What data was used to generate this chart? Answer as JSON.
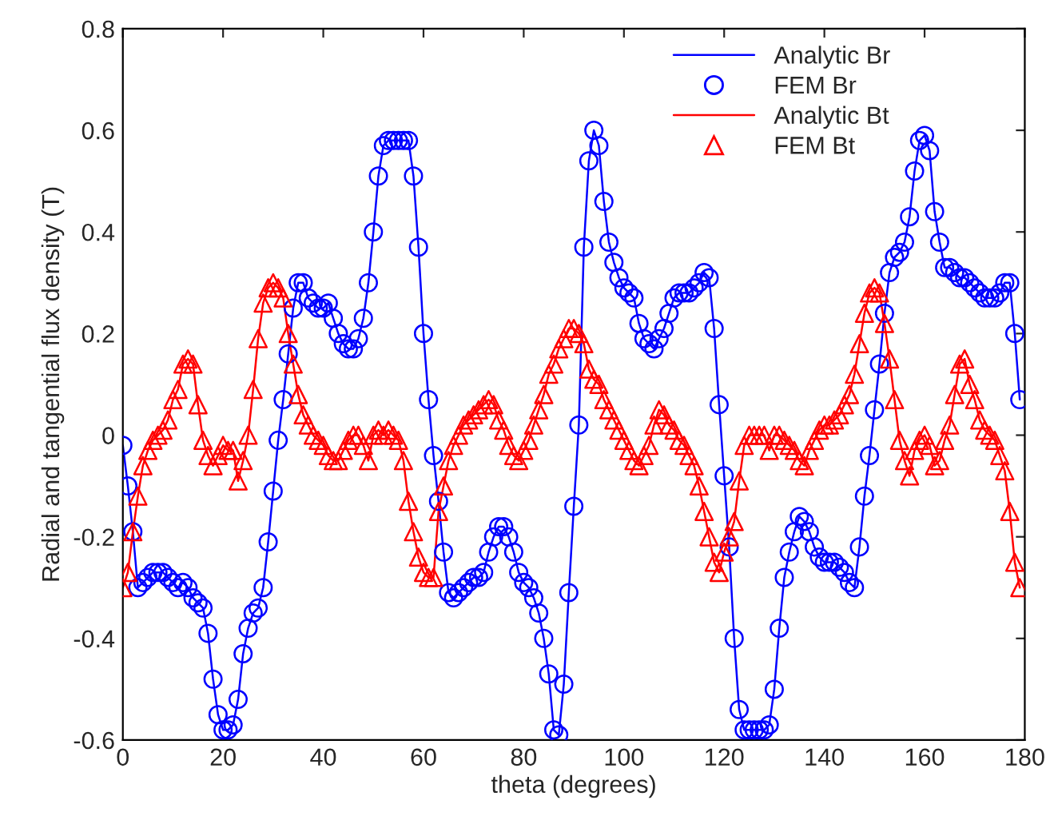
{
  "chart_data": {
    "type": "line",
    "xlabel": "theta (degrees)",
    "ylabel": "Radial and tangential flux density (T)",
    "x": [
      0,
      1,
      2,
      3,
      4,
      5,
      6,
      7,
      8,
      9,
      10,
      11,
      12,
      13,
      14,
      15,
      16,
      17,
      18,
      19,
      20,
      21,
      22,
      23,
      24,
      25,
      26,
      27,
      28,
      29,
      30,
      31,
      32,
      33,
      34,
      35,
      36,
      37,
      38,
      39,
      40,
      41,
      42,
      43,
      44,
      45,
      46,
      47,
      48,
      49,
      50,
      51,
      52,
      53,
      54,
      55,
      56,
      57,
      58,
      59,
      60,
      61,
      62,
      63,
      64,
      65,
      66,
      67,
      68,
      69,
      70,
      71,
      72,
      73,
      74,
      75,
      76,
      77,
      78,
      79,
      80,
      81,
      82,
      83,
      84,
      85,
      86,
      87,
      88,
      89,
      90,
      91,
      92,
      93,
      94,
      95,
      96,
      97,
      98,
      99,
      100,
      101,
      102,
      103,
      104,
      105,
      106,
      107,
      108,
      109,
      110,
      111,
      112,
      113,
      114,
      115,
      116,
      117,
      118,
      119,
      120,
      121,
      122,
      123,
      124,
      125,
      126,
      127,
      128,
      129,
      130,
      131,
      132,
      133,
      134,
      135,
      136,
      137,
      138,
      139,
      140,
      141,
      142,
      143,
      144,
      145,
      146,
      147,
      148,
      149,
      150,
      151,
      152,
      153,
      154,
      155,
      156,
      157,
      158,
      159,
      160,
      161,
      162,
      163,
      164,
      165,
      166,
      167,
      168,
      169,
      170,
      171,
      172,
      173,
      174,
      175,
      176,
      177,
      178,
      179
    ],
    "series": [
      {
        "name": "Analytic Br",
        "marker": "none",
        "color": "#0000ff",
        "values": [
          -0.02,
          -0.1,
          -0.19,
          -0.3,
          -0.29,
          -0.28,
          -0.27,
          -0.27,
          -0.27,
          -0.28,
          -0.29,
          -0.3,
          -0.29,
          -0.3,
          -0.32,
          -0.33,
          -0.34,
          -0.39,
          -0.48,
          -0.55,
          -0.58,
          -0.58,
          -0.57,
          -0.52,
          -0.43,
          -0.38,
          -0.35,
          -0.34,
          -0.3,
          -0.21,
          -0.11,
          -0.01,
          0.07,
          0.16,
          0.25,
          0.3,
          0.3,
          0.27,
          0.26,
          0.25,
          0.25,
          0.26,
          0.23,
          0.2,
          0.18,
          0.17,
          0.17,
          0.19,
          0.23,
          0.3,
          0.4,
          0.51,
          0.57,
          0.58,
          0.58,
          0.58,
          0.58,
          0.58,
          0.51,
          0.37,
          0.2,
          0.07,
          -0.04,
          -0.13,
          -0.23,
          -0.31,
          -0.32,
          -0.31,
          -0.3,
          -0.29,
          -0.28,
          -0.28,
          -0.27,
          -0.23,
          -0.2,
          -0.18,
          -0.18,
          -0.2,
          -0.23,
          -0.27,
          -0.29,
          -0.3,
          -0.32,
          -0.35,
          -0.4,
          -0.47,
          -0.58,
          -0.59,
          -0.49,
          -0.31,
          -0.14,
          0.02,
          0.37,
          0.54,
          0.6,
          0.57,
          0.46,
          0.38,
          0.34,
          0.31,
          0.29,
          0.28,
          0.27,
          0.22,
          0.19,
          0.18,
          0.17,
          0.19,
          0.21,
          0.24,
          0.27,
          0.28,
          0.28,
          0.28,
          0.29,
          0.3,
          0.32,
          0.31,
          0.21,
          0.06,
          -0.08,
          -0.22,
          -0.4,
          -0.54,
          -0.58,
          -0.58,
          -0.58,
          -0.58,
          -0.58,
          -0.57,
          -0.5,
          -0.38,
          -0.28,
          -0.23,
          -0.19,
          -0.16,
          -0.17,
          -0.19,
          -0.22,
          -0.24,
          -0.25,
          -0.25,
          -0.25,
          -0.26,
          -0.27,
          -0.29,
          -0.3,
          -0.22,
          -0.12,
          -0.04,
          0.05,
          0.14,
          0.24,
          0.32,
          0.35,
          0.36,
          0.38,
          0.43,
          0.52,
          0.58,
          0.59,
          0.56,
          0.44,
          0.38,
          0.33,
          0.33,
          0.32,
          0.31,
          0.31,
          0.3,
          0.29,
          0.28,
          0.27,
          0.27,
          0.27,
          0.28,
          0.3,
          0.3,
          0.2,
          0.07
        ]
      },
      {
        "name": "FEM Br",
        "type": "scatter",
        "marker": "circle",
        "color": "#0000ff",
        "values": [
          -0.02,
          -0.1,
          -0.19,
          -0.3,
          -0.29,
          -0.28,
          -0.27,
          -0.27,
          -0.27,
          -0.28,
          -0.29,
          -0.3,
          -0.29,
          -0.3,
          -0.32,
          -0.33,
          -0.34,
          -0.39,
          -0.48,
          -0.55,
          -0.58,
          -0.58,
          -0.57,
          -0.52,
          -0.43,
          -0.38,
          -0.35,
          -0.34,
          -0.3,
          -0.21,
          -0.11,
          -0.01,
          0.07,
          0.16,
          0.25,
          0.3,
          0.3,
          0.27,
          0.26,
          0.25,
          0.25,
          0.26,
          0.23,
          0.2,
          0.18,
          0.17,
          0.17,
          0.19,
          0.23,
          0.3,
          0.4,
          0.51,
          0.57,
          0.58,
          0.58,
          0.58,
          0.58,
          0.58,
          0.51,
          0.37,
          0.2,
          0.07,
          -0.04,
          -0.13,
          -0.23,
          -0.31,
          -0.32,
          -0.31,
          -0.3,
          -0.29,
          -0.28,
          -0.28,
          -0.27,
          -0.23,
          -0.2,
          -0.18,
          -0.18,
          -0.2,
          -0.23,
          -0.27,
          -0.29,
          -0.3,
          -0.32,
          -0.35,
          -0.4,
          -0.47,
          -0.58,
          -0.59,
          -0.49,
          -0.31,
          -0.14,
          0.02,
          0.37,
          0.54,
          0.6,
          0.57,
          0.46,
          0.38,
          0.34,
          0.31,
          0.29,
          0.28,
          0.27,
          0.22,
          0.19,
          0.18,
          0.17,
          0.19,
          0.21,
          0.24,
          0.27,
          0.28,
          0.28,
          0.28,
          0.29,
          0.3,
          0.32,
          0.31,
          0.21,
          0.06,
          -0.08,
          -0.22,
          -0.4,
          -0.54,
          -0.58,
          -0.58,
          -0.58,
          -0.58,
          -0.58,
          -0.57,
          -0.5,
          -0.38,
          -0.28,
          -0.23,
          -0.19,
          -0.16,
          -0.17,
          -0.19,
          -0.22,
          -0.24,
          -0.25,
          -0.25,
          -0.25,
          -0.26,
          -0.27,
          -0.29,
          -0.3,
          -0.22,
          -0.12,
          -0.04,
          0.05,
          0.14,
          0.24,
          0.32,
          0.35,
          0.36,
          0.38,
          0.43,
          0.52,
          0.58,
          0.59,
          0.56,
          0.44,
          0.38,
          0.33,
          0.33,
          0.32,
          0.31,
          0.31,
          0.3,
          0.29,
          0.28,
          0.27,
          0.27,
          0.27,
          0.28,
          0.3,
          0.3,
          0.2,
          0.07
        ]
      },
      {
        "name": "Analytic Bt",
        "marker": "none",
        "color": "#ff0000",
        "values": [
          -0.3,
          -0.27,
          -0.19,
          -0.12,
          -0.06,
          -0.03,
          -0.01,
          0.0,
          0.01,
          0.03,
          0.07,
          0.09,
          0.14,
          0.15,
          0.14,
          0.06,
          -0.01,
          -0.04,
          -0.06,
          -0.04,
          -0.02,
          -0.03,
          -0.03,
          -0.09,
          -0.05,
          0.0,
          0.09,
          0.19,
          0.26,
          0.29,
          0.3,
          0.29,
          0.27,
          0.2,
          0.14,
          0.08,
          0.04,
          0.02,
          0.0,
          -0.01,
          -0.02,
          -0.04,
          -0.05,
          -0.05,
          -0.03,
          -0.01,
          0.0,
          0.0,
          -0.02,
          -0.05,
          0.0,
          0.01,
          0.0,
          0.01,
          0.0,
          -0.01,
          -0.05,
          -0.13,
          -0.19,
          -0.24,
          -0.27,
          -0.28,
          -0.28,
          -0.15,
          -0.1,
          -0.05,
          -0.02,
          0.0,
          0.02,
          0.03,
          0.04,
          0.05,
          0.06,
          0.07,
          0.06,
          0.03,
          0.01,
          -0.02,
          -0.04,
          -0.05,
          -0.03,
          -0.01,
          0.02,
          0.05,
          0.08,
          0.12,
          0.14,
          0.17,
          0.19,
          0.21,
          0.21,
          0.2,
          0.18,
          0.13,
          0.11,
          0.1,
          0.07,
          0.05,
          0.03,
          0.01,
          -0.01,
          -0.03,
          -0.05,
          -0.06,
          -0.04,
          -0.02,
          0.02,
          0.05,
          0.04,
          0.02,
          0.01,
          -0.01,
          -0.02,
          -0.04,
          -0.06,
          -0.1,
          -0.15,
          -0.2,
          -0.25,
          -0.27,
          -0.23,
          -0.2,
          -0.17,
          -0.09,
          -0.02,
          0.0,
          0.0,
          0.0,
          0.0,
          -0.03,
          0.0,
          0.0,
          -0.01,
          -0.02,
          -0.03,
          -0.05,
          -0.06,
          -0.03,
          -0.01,
          0.01,
          0.02,
          0.02,
          0.03,
          0.04,
          0.06,
          0.08,
          0.12,
          0.18,
          0.24,
          0.28,
          0.29,
          0.28,
          0.22,
          0.15,
          0.07,
          -0.01,
          -0.05,
          -0.08,
          -0.03,
          -0.01,
          0.0,
          -0.02,
          -0.06,
          -0.05,
          -0.01,
          0.02,
          0.08,
          0.14,
          0.15,
          0.1,
          0.07,
          0.03,
          0.01,
          0.0,
          -0.01,
          -0.04,
          -0.07,
          -0.15,
          -0.25,
          -0.3
        ]
      },
      {
        "name": "FEM Bt",
        "type": "scatter",
        "marker": "triangle",
        "color": "#ff0000",
        "values": [
          -0.3,
          -0.27,
          -0.19,
          -0.12,
          -0.06,
          -0.03,
          -0.01,
          0.0,
          0.01,
          0.03,
          0.07,
          0.09,
          0.14,
          0.15,
          0.14,
          0.06,
          -0.01,
          -0.04,
          -0.06,
          -0.04,
          -0.02,
          -0.03,
          -0.03,
          -0.09,
          -0.05,
          0.0,
          0.09,
          0.19,
          0.26,
          0.29,
          0.3,
          0.29,
          0.27,
          0.2,
          0.14,
          0.08,
          0.04,
          0.02,
          0.0,
          -0.01,
          -0.02,
          -0.04,
          -0.05,
          -0.05,
          -0.03,
          -0.01,
          0.0,
          0.0,
          -0.02,
          -0.05,
          0.0,
          0.01,
          0.0,
          0.01,
          0.0,
          -0.01,
          -0.05,
          -0.13,
          -0.19,
          -0.24,
          -0.27,
          -0.28,
          -0.28,
          -0.15,
          -0.1,
          -0.05,
          -0.02,
          0.0,
          0.02,
          0.03,
          0.04,
          0.05,
          0.06,
          0.07,
          0.06,
          0.03,
          0.01,
          -0.02,
          -0.04,
          -0.05,
          -0.03,
          -0.01,
          0.02,
          0.05,
          0.08,
          0.12,
          0.14,
          0.17,
          0.19,
          0.21,
          0.21,
          0.2,
          0.18,
          0.13,
          0.11,
          0.1,
          0.07,
          0.05,
          0.03,
          0.01,
          -0.01,
          -0.03,
          -0.05,
          -0.06,
          -0.04,
          -0.02,
          0.02,
          0.05,
          0.04,
          0.02,
          0.01,
          -0.01,
          -0.02,
          -0.04,
          -0.06,
          -0.1,
          -0.15,
          -0.2,
          -0.25,
          -0.27,
          -0.23,
          -0.2,
          -0.17,
          -0.09,
          -0.02,
          0.0,
          0.0,
          0.0,
          0.0,
          -0.03,
          0.0,
          0.0,
          -0.01,
          -0.02,
          -0.03,
          -0.05,
          -0.06,
          -0.03,
          -0.01,
          0.01,
          0.02,
          0.02,
          0.03,
          0.04,
          0.06,
          0.08,
          0.12,
          0.18,
          0.24,
          0.28,
          0.29,
          0.28,
          0.22,
          0.15,
          0.07,
          -0.01,
          -0.05,
          -0.08,
          -0.03,
          -0.01,
          0.0,
          -0.02,
          -0.06,
          -0.05,
          -0.01,
          0.02,
          0.08,
          0.14,
          0.15,
          0.1,
          0.07,
          0.03,
          0.01,
          0.0,
          -0.01,
          -0.04,
          -0.07,
          -0.15,
          -0.25,
          -0.3
        ]
      }
    ],
    "xlim": [
      0,
      180
    ],
    "xticks": [
      0,
      20,
      40,
      60,
      80,
      100,
      120,
      140,
      160,
      180
    ],
    "ylim": [
      -0.6,
      0.8
    ],
    "yticks": [
      -0.6,
      -0.4,
      -0.2,
      0,
      0.2,
      0.4,
      0.6,
      0.8
    ],
    "grid": false,
    "legend": "top right",
    "line_style": "solid"
  }
}
